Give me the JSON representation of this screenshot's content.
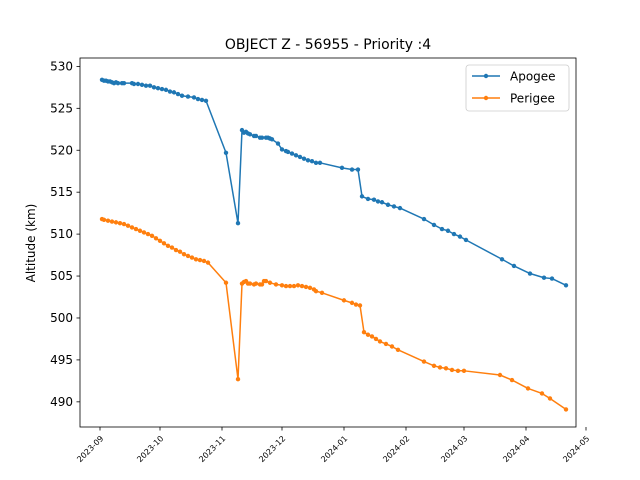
{
  "chart_data": {
    "type": "line",
    "title": "OBJECT Z - 56955 - Priority :4",
    "xlabel": "",
    "ylabel": "Altitude (km)",
    "xlim": [
      "2023-08-22",
      "2024-04-26"
    ],
    "ylim": [
      487,
      531
    ],
    "x_ticks": [
      "2023-09",
      "2023-10",
      "2023-11",
      "2023-12",
      "2024-01",
      "2024-02",
      "2024-03",
      "2024-04",
      "2024-05"
    ],
    "y_ticks": [
      490,
      495,
      500,
      505,
      510,
      515,
      520,
      525,
      530
    ],
    "grid": false,
    "legend_position": "top-right",
    "series": [
      {
        "name": "Apogee",
        "color": "#1f77b4",
        "points": [
          [
            "2023-09-02",
            528.4
          ],
          [
            "2023-09-03",
            528.3
          ],
          [
            "2023-09-04",
            528.3
          ],
          [
            "2023-09-05",
            528.2
          ],
          [
            "2023-09-06",
            528.2
          ],
          [
            "2023-09-07",
            528.1
          ],
          [
            "2023-09-08",
            528.0
          ],
          [
            "2023-09-09",
            528.1
          ],
          [
            "2023-09-10",
            528.0
          ],
          [
            "2023-09-12",
            528.0
          ],
          [
            "2023-09-13",
            528.0
          ],
          [
            "2023-09-17",
            528.0
          ],
          [
            "2023-09-18",
            527.9
          ],
          [
            "2023-09-20",
            527.9
          ],
          [
            "2023-09-22",
            527.8
          ],
          [
            "2023-09-24",
            527.7
          ],
          [
            "2023-09-26",
            527.7
          ],
          [
            "2023-09-28",
            527.5
          ],
          [
            "2023-09-30",
            527.4
          ],
          [
            "2023-10-02",
            527.3
          ],
          [
            "2023-10-04",
            527.2
          ],
          [
            "2023-10-06",
            527.0
          ],
          [
            "2023-10-08",
            526.9
          ],
          [
            "2023-10-10",
            526.7
          ],
          [
            "2023-10-12",
            526.5
          ],
          [
            "2023-10-15",
            526.4
          ],
          [
            "2023-10-18",
            526.3
          ],
          [
            "2023-10-20",
            526.1
          ],
          [
            "2023-10-22",
            526.0
          ],
          [
            "2023-10-24",
            525.9
          ],
          [
            "2023-11-03",
            519.7
          ],
          [
            "2023-11-09",
            511.3
          ],
          [
            "2023-11-11",
            522.4
          ],
          [
            "2023-11-12",
            522.1
          ],
          [
            "2023-11-13",
            522.2
          ],
          [
            "2023-11-14",
            522.0
          ],
          [
            "2023-11-15",
            521.9
          ],
          [
            "2023-11-17",
            521.7
          ],
          [
            "2023-11-18",
            521.7
          ],
          [
            "2023-11-20",
            521.5
          ],
          [
            "2023-11-21",
            521.5
          ],
          [
            "2023-11-23",
            521.5
          ],
          [
            "2023-11-24",
            521.5
          ],
          [
            "2023-11-25",
            521.4
          ],
          [
            "2023-11-26",
            521.3
          ],
          [
            "2023-11-29",
            520.8
          ],
          [
            "2023-12-01",
            520.1
          ],
          [
            "2023-12-03",
            519.9
          ],
          [
            "2023-12-04",
            519.8
          ],
          [
            "2023-12-06",
            519.6
          ],
          [
            "2023-12-08",
            519.4
          ],
          [
            "2023-12-10",
            519.2
          ],
          [
            "2023-12-12",
            519.0
          ],
          [
            "2023-12-14",
            518.8
          ],
          [
            "2023-12-16",
            518.7
          ],
          [
            "2023-12-18",
            518.5
          ],
          [
            "2023-12-20",
            518.5
          ],
          [
            "2023-12-31",
            517.9
          ],
          [
            "2024-01-05",
            517.7
          ],
          [
            "2024-01-08",
            517.7
          ],
          [
            "2024-01-10",
            514.5
          ],
          [
            "2024-01-13",
            514.2
          ],
          [
            "2024-01-16",
            514.1
          ],
          [
            "2024-01-18",
            513.9
          ],
          [
            "2024-01-20",
            513.8
          ],
          [
            "2024-01-23",
            513.5
          ],
          [
            "2024-01-26",
            513.3
          ],
          [
            "2024-01-29",
            513.1
          ],
          [
            "2024-02-10",
            511.8
          ],
          [
            "2024-02-15",
            511.1
          ],
          [
            "2024-02-19",
            510.6
          ],
          [
            "2024-02-22",
            510.4
          ],
          [
            "2024-02-25",
            510.0
          ],
          [
            "2024-02-28",
            509.7
          ],
          [
            "2024-03-02",
            509.3
          ],
          [
            "2024-03-20",
            507.0
          ],
          [
            "2024-03-26",
            506.2
          ],
          [
            "2024-04-03",
            505.3
          ],
          [
            "2024-04-10",
            504.8
          ],
          [
            "2024-04-14",
            504.7
          ],
          [
            "2024-04-21",
            503.9
          ]
        ]
      },
      {
        "name": "Perigee",
        "color": "#ff7f0e",
        "points": [
          [
            "2023-09-02",
            511.8
          ],
          [
            "2023-09-03",
            511.7
          ],
          [
            "2023-09-05",
            511.6
          ],
          [
            "2023-09-07",
            511.5
          ],
          [
            "2023-09-09",
            511.4
          ],
          [
            "2023-09-11",
            511.3
          ],
          [
            "2023-09-13",
            511.2
          ],
          [
            "2023-09-15",
            511.0
          ],
          [
            "2023-09-17",
            510.8
          ],
          [
            "2023-09-19",
            510.6
          ],
          [
            "2023-09-21",
            510.4
          ],
          [
            "2023-09-23",
            510.2
          ],
          [
            "2023-09-25",
            510.0
          ],
          [
            "2023-09-27",
            509.8
          ],
          [
            "2023-09-29",
            509.5
          ],
          [
            "2023-10-01",
            509.2
          ],
          [
            "2023-10-03",
            508.9
          ],
          [
            "2023-10-05",
            508.6
          ],
          [
            "2023-10-07",
            508.4
          ],
          [
            "2023-10-09",
            508.1
          ],
          [
            "2023-10-11",
            507.9
          ],
          [
            "2023-10-13",
            507.6
          ],
          [
            "2023-10-15",
            507.4
          ],
          [
            "2023-10-17",
            507.2
          ],
          [
            "2023-10-19",
            507.0
          ],
          [
            "2023-10-21",
            506.9
          ],
          [
            "2023-10-23",
            506.8
          ],
          [
            "2023-10-25",
            506.6
          ],
          [
            "2023-11-03",
            504.2
          ],
          [
            "2023-11-09",
            492.7
          ],
          [
            "2023-11-11",
            504.1
          ],
          [
            "2023-11-12",
            504.3
          ],
          [
            "2023-11-13",
            504.4
          ],
          [
            "2023-11-14",
            504.1
          ],
          [
            "2023-11-15",
            504.1
          ],
          [
            "2023-11-17",
            504.0
          ],
          [
            "2023-11-18",
            504.1
          ],
          [
            "2023-11-20",
            504.0
          ],
          [
            "2023-11-21",
            504.0
          ],
          [
            "2023-11-22",
            504.4
          ],
          [
            "2023-11-23",
            504.4
          ],
          [
            "2023-11-25",
            504.2
          ],
          [
            "2023-11-28",
            504.0
          ],
          [
            "2023-12-01",
            503.9
          ],
          [
            "2023-12-03",
            503.8
          ],
          [
            "2023-12-05",
            503.8
          ],
          [
            "2023-12-07",
            503.8
          ],
          [
            "2023-12-09",
            503.9
          ],
          [
            "2023-12-11",
            503.8
          ],
          [
            "2023-12-13",
            503.7
          ],
          [
            "2023-12-15",
            503.6
          ],
          [
            "2023-12-17",
            503.4
          ],
          [
            "2023-12-18",
            503.2
          ],
          [
            "2023-12-21",
            503.0
          ],
          [
            "2024-01-01",
            502.1
          ],
          [
            "2024-01-05",
            501.8
          ],
          [
            "2024-01-07",
            501.6
          ],
          [
            "2024-01-09",
            501.5
          ],
          [
            "2024-01-11",
            498.3
          ],
          [
            "2024-01-13",
            498.0
          ],
          [
            "2024-01-15",
            497.8
          ],
          [
            "2024-01-17",
            497.5
          ],
          [
            "2024-01-19",
            497.2
          ],
          [
            "2024-01-22",
            496.9
          ],
          [
            "2024-01-25",
            496.6
          ],
          [
            "2024-01-28",
            496.2
          ],
          [
            "2024-02-10",
            494.8
          ],
          [
            "2024-02-15",
            494.3
          ],
          [
            "2024-02-18",
            494.1
          ],
          [
            "2024-02-21",
            494.0
          ],
          [
            "2024-02-24",
            493.8
          ],
          [
            "2024-02-27",
            493.7
          ],
          [
            "2024-03-01",
            493.7
          ],
          [
            "2024-03-19",
            493.2
          ],
          [
            "2024-03-25",
            492.6
          ],
          [
            "2024-04-02",
            491.6
          ],
          [
            "2024-04-09",
            491.0
          ],
          [
            "2024-04-13",
            490.4
          ],
          [
            "2024-04-21",
            489.1
          ]
        ]
      }
    ]
  }
}
